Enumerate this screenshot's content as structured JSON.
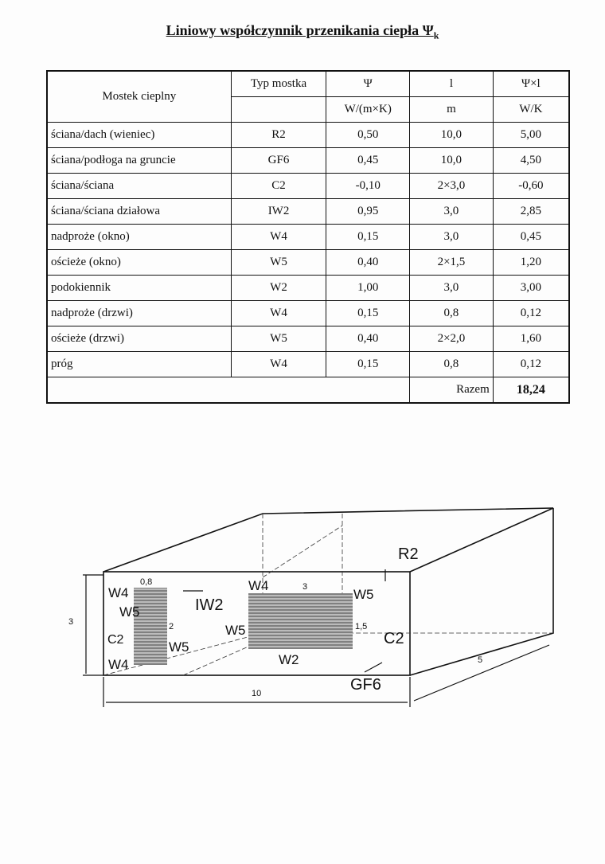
{
  "title": "Liniowy współczynnik przenikania ciepła Ψ",
  "title_sub": "k",
  "table": {
    "headers": {
      "bridge": "Mostek cieplny",
      "type": "Typ mostka",
      "psi": "Ψ",
      "l": "l",
      "psil": "Ψ×l"
    },
    "units": {
      "type": "",
      "psi": "W/(m×K)",
      "l": "m",
      "psil": "W/K"
    },
    "rows": [
      {
        "bridge": "ściana/dach (wieniec)",
        "type": "R2",
        "psi": "0,50",
        "l": "10,0",
        "psil": "5,00"
      },
      {
        "bridge": "ściana/podłoga na gruncie",
        "type": "GF6",
        "psi": "0,45",
        "l": "10,0",
        "psil": "4,50"
      },
      {
        "bridge": "ściana/ściana",
        "type": "C2",
        "psi": "-0,10",
        "l": "2×3,0",
        "psil": "-0,60"
      },
      {
        "bridge": "ściana/ściana działowa",
        "type": "IW2",
        "psi": "0,95",
        "l": "3,0",
        "psil": "2,85"
      },
      {
        "bridge": "nadproże (okno)",
        "type": "W4",
        "psi": "0,15",
        "l": "3,0",
        "psil": "0,45"
      },
      {
        "bridge": "ościeże (okno)",
        "type": "W5",
        "psi": "0,40",
        "l": "2×1,5",
        "psil": "1,20"
      },
      {
        "bridge": "podokiennik",
        "type": "W2",
        "psi": "1,00",
        "l": "3,0",
        "psil": "3,00"
      },
      {
        "bridge": "nadproże (drzwi)",
        "type": "W4",
        "psi": "0,15",
        "l": "0,8",
        "psil": "0,12"
      },
      {
        "bridge": "ościeże (drzwi)",
        "type": "W5",
        "psi": "0,40",
        "l": "2×2,0",
        "psil": "1,60"
      },
      {
        "bridge": "próg",
        "type": "W4",
        "psi": "0,15",
        "l": "0,8",
        "psil": "0,12"
      }
    ],
    "total_label": "Razem",
    "total_value": "18,24"
  },
  "diagram": {
    "labels": {
      "r2": "R2",
      "iw2": "IW2",
      "c2_right": "C2",
      "c2_left": "C2",
      "gf6": "GF6",
      "w4_win": "W4",
      "w5_win_r": "W5",
      "w5_win_l": "W5",
      "w2": "W2",
      "w4_door_top": "W4",
      "w5_door_l": "W5",
      "w5_door_r": "W5",
      "w4_door_bottom": "W4"
    },
    "dims": {
      "height": "3",
      "length": "10",
      "depth": "5",
      "door_width": "0,8",
      "door_height": "2",
      "win_width": "3",
      "win_height": "1,5"
    }
  }
}
